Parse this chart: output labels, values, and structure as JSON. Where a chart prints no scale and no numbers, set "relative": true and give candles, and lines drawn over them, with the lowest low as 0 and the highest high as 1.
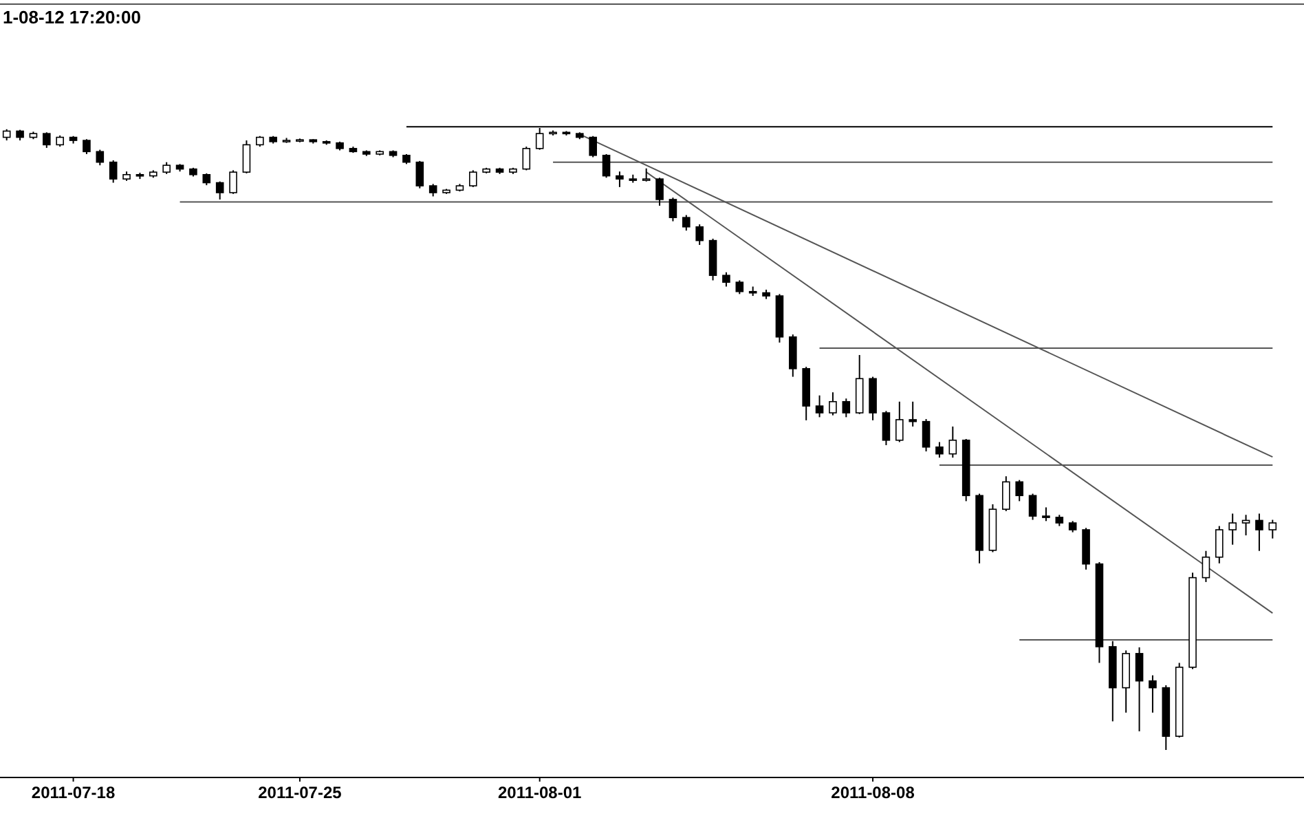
{
  "chart_data": {
    "type": "candlestick",
    "title": "1-08-12 17:20:00",
    "relative": true,
    "color": "#000000",
    "line_style": "solid",
    "categories": [
      null,
      null,
      null,
      null,
      null,
      "2011-07-18",
      null,
      null,
      null,
      null,
      null,
      null,
      null,
      null,
      null,
      null,
      null,
      null,
      null,
      null,
      null,
      null,
      "2011-07-25",
      null,
      null,
      null,
      null,
      null,
      null,
      null,
      null,
      null,
      null,
      null,
      null,
      null,
      null,
      null,
      null,
      null,
      "2011-08-01",
      null,
      null,
      null,
      null,
      null,
      null,
      null,
      null,
      null,
      null,
      null,
      null,
      null,
      null,
      null,
      null,
      null,
      null,
      null,
      null,
      null,
      null,
      null,
      null,
      "2011-08-08",
      null,
      null,
      null,
      null,
      null,
      null,
      null,
      null,
      null,
      null,
      null,
      null,
      null,
      null,
      null,
      null,
      null,
      null,
      null,
      null,
      null,
      null,
      null,
      null,
      null,
      null,
      null,
      null,
      null,
      null
    ],
    "ohlc": [
      [
        0.985,
        0.998,
        0.98,
        0.995
      ],
      [
        0.995,
        0.997,
        0.98,
        0.985
      ],
      [
        0.985,
        0.994,
        0.982,
        0.991
      ],
      [
        0.991,
        0.993,
        0.968,
        0.973
      ],
      [
        0.973,
        0.988,
        0.97,
        0.985
      ],
      [
        0.985,
        0.987,
        0.975,
        0.98
      ],
      [
        0.98,
        0.982,
        0.958,
        0.962
      ],
      [
        0.962,
        0.965,
        0.94,
        0.945
      ],
      [
        0.945,
        0.948,
        0.912,
        0.918
      ],
      [
        0.918,
        0.93,
        0.915,
        0.925
      ],
      [
        0.925,
        0.928,
        0.918,
        0.923
      ],
      [
        0.923,
        0.932,
        0.92,
        0.929
      ],
      [
        0.929,
        0.945,
        0.926,
        0.94
      ],
      [
        0.94,
        0.942,
        0.93,
        0.934
      ],
      [
        0.934,
        0.936,
        0.922,
        0.925
      ],
      [
        0.925,
        0.927,
        0.908,
        0.912
      ],
      [
        0.912,
        0.914,
        0.885,
        0.896
      ],
      [
        0.896,
        0.932,
        0.894,
        0.929
      ],
      [
        0.929,
        0.98,
        0.927,
        0.973
      ],
      [
        0.973,
        0.987,
        0.97,
        0.985
      ],
      [
        0.985,
        0.987,
        0.975,
        0.978
      ],
      [
        0.978,
        0.984,
        0.976,
        0.98
      ],
      [
        0.98,
        0.983,
        0.977,
        0.981
      ],
      [
        0.981,
        0.982,
        0.975,
        0.978
      ],
      [
        0.978,
        0.98,
        0.973,
        0.976
      ],
      [
        0.976,
        0.978,
        0.964,
        0.967
      ],
      [
        0.967,
        0.97,
        0.96,
        0.962
      ],
      [
        0.962,
        0.964,
        0.955,
        0.958
      ],
      [
        0.958,
        0.964,
        0.956,
        0.962
      ],
      [
        0.962,
        0.964,
        0.953,
        0.956
      ],
      [
        0.956,
        0.958,
        0.942,
        0.945
      ],
      [
        0.945,
        0.947,
        0.903,
        0.907
      ],
      [
        0.907,
        0.91,
        0.89,
        0.896
      ],
      [
        0.896,
        0.902,
        0.894,
        0.9
      ],
      [
        0.9,
        0.91,
        0.898,
        0.907
      ],
      [
        0.907,
        0.932,
        0.905,
        0.929
      ],
      [
        0.929,
        0.936,
        0.927,
        0.934
      ],
      [
        0.934,
        0.936,
        0.926,
        0.929
      ],
      [
        0.929,
        0.936,
        0.926,
        0.934
      ],
      [
        0.934,
        0.97,
        0.932,
        0.967
      ],
      [
        0.967,
        1,
        0.965,
        0.991
      ],
      [
        0.991,
        0.996,
        0.988,
        0.993
      ],
      [
        0.993,
        0.995,
        0.988,
        0.991
      ],
      [
        0.991,
        0.993,
        0.982,
        0.985
      ],
      [
        0.985,
        0.987,
        0.953,
        0.956
      ],
      [
        0.956,
        0.958,
        0.92,
        0.923
      ],
      [
        0.923,
        0.93,
        0.905,
        0.918
      ],
      [
        0.918,
        0.925,
        0.912,
        0.916
      ],
      [
        0.916,
        0.935,
        0.914,
        0.918
      ],
      [
        0.918,
        0.92,
        0.875,
        0.885
      ],
      [
        0.885,
        0.888,
        0.85,
        0.856
      ],
      [
        0.856,
        0.86,
        0.835,
        0.841
      ],
      [
        0.841,
        0.845,
        0.812,
        0.819
      ],
      [
        0.819,
        0.822,
        0.755,
        0.763
      ],
      [
        0.763,
        0.768,
        0.745,
        0.752
      ],
      [
        0.752,
        0.755,
        0.733,
        0.737
      ],
      [
        0.737,
        0.745,
        0.73,
        0.735
      ],
      [
        0.735,
        0.74,
        0.725,
        0.73
      ],
      [
        0.73,
        0.733,
        0.655,
        0.664
      ],
      [
        0.664,
        0.668,
        0.6,
        0.613
      ],
      [
        0.613,
        0.616,
        0.53,
        0.553
      ],
      [
        0.553,
        0.57,
        0.535,
        0.542
      ],
      [
        0.542,
        0.575,
        0.538,
        0.56
      ],
      [
        0.56,
        0.565,
        0.535,
        0.542
      ],
      [
        0.542,
        0.635,
        0.54,
        0.597
      ],
      [
        0.597,
        0.6,
        0.53,
        0.542
      ],
      [
        0.542,
        0.545,
        0.49,
        0.498
      ],
      [
        0.498,
        0.56,
        0.495,
        0.531
      ],
      [
        0.531,
        0.56,
        0.52,
        0.528
      ],
      [
        0.528,
        0.532,
        0.48,
        0.487
      ],
      [
        0.487,
        0.495,
        0.47,
        0.476
      ],
      [
        0.476,
        0.52,
        0.47,
        0.498
      ],
      [
        0.498,
        0.5,
        0.4,
        0.409
      ],
      [
        0.409,
        0.412,
        0.3,
        0.321
      ],
      [
        0.321,
        0.395,
        0.318,
        0.387
      ],
      [
        0.387,
        0.44,
        0.384,
        0.431
      ],
      [
        0.431,
        0.434,
        0.4,
        0.409
      ],
      [
        0.409,
        0.412,
        0.37,
        0.376
      ],
      [
        0.376,
        0.39,
        0.368,
        0.374
      ],
      [
        0.374,
        0.378,
        0.36,
        0.365
      ],
      [
        0.365,
        0.368,
        0.35,
        0.354
      ],
      [
        0.354,
        0.357,
        0.29,
        0.299
      ],
      [
        0.299,
        0.302,
        0.14,
        0.166
      ],
      [
        0.166,
        0.175,
        0.046,
        0.1
      ],
      [
        0.1,
        0.16,
        0.06,
        0.155
      ],
      [
        0.155,
        0.165,
        0.03,
        0.111
      ],
      [
        0.111,
        0.12,
        0.06,
        0.1
      ],
      [
        0.1,
        0.104,
        0,
        0.022
      ],
      [
        0.022,
        0.14,
        0.02,
        0.133
      ],
      [
        0.133,
        0.285,
        0.13,
        0.277
      ],
      [
        0.277,
        0.32,
        0.27,
        0.31
      ],
      [
        0.31,
        0.36,
        0.3,
        0.354
      ],
      [
        0.354,
        0.38,
        0.33,
        0.365
      ],
      [
        0.365,
        0.378,
        0.345,
        0.369
      ],
      [
        0.369,
        0.38,
        0.32,
        0.354
      ],
      [
        0.354,
        0.37,
        0.34,
        0.365
      ]
    ],
    "series": [
      {
        "type": "line",
        "color": "#000000",
        "values": [
          null,
          null,
          null,
          null,
          null,
          null,
          null,
          null,
          null,
          null,
          null,
          null,
          null,
          null,
          null,
          null,
          null,
          null,
          null,
          null,
          null,
          null,
          null,
          null,
          null,
          null,
          null,
          null,
          null,
          null,
          1.002,
          null,
          null,
          null,
          null,
          null,
          null,
          null,
          null,
          null,
          null,
          null,
          null,
          null,
          null,
          null,
          null,
          null,
          null,
          null,
          null,
          null,
          null,
          null,
          null,
          null,
          null,
          null,
          null,
          null,
          null,
          null,
          null,
          null,
          null,
          null,
          null,
          null,
          null,
          null,
          null,
          null,
          null,
          null,
          null,
          null,
          null,
          null,
          null,
          null,
          null,
          null,
          null,
          null,
          null,
          null,
          null,
          null,
          null,
          null,
          null,
          null,
          null,
          null,
          null,
          1.002
        ]
      },
      {
        "type": "line",
        "color": "#555555",
        "values": [
          null,
          null,
          null,
          null,
          null,
          null,
          null,
          null,
          null,
          null,
          null,
          null,
          null,
          null,
          null,
          null,
          null,
          null,
          null,
          null,
          null,
          null,
          null,
          null,
          null,
          null,
          null,
          null,
          null,
          null,
          null,
          null,
          null,
          null,
          null,
          null,
          null,
          null,
          null,
          null,
          null,
          0.945,
          null,
          null,
          null,
          null,
          null,
          null,
          null,
          null,
          null,
          null,
          null,
          null,
          null,
          null,
          null,
          null,
          null,
          null,
          null,
          null,
          null,
          null,
          null,
          null,
          null,
          null,
          null,
          null,
          null,
          null,
          null,
          null,
          null,
          null,
          null,
          null,
          null,
          null,
          null,
          null,
          null,
          null,
          null,
          null,
          null,
          null,
          null,
          null,
          null,
          null,
          null,
          null,
          null,
          0.945
        ]
      },
      {
        "type": "line",
        "color": "#555555",
        "values": [
          null,
          null,
          null,
          null,
          null,
          null,
          null,
          null,
          null,
          null,
          null,
          null,
          null,
          0.881,
          null,
          null,
          null,
          null,
          null,
          null,
          null,
          null,
          null,
          null,
          null,
          null,
          null,
          null,
          null,
          null,
          null,
          null,
          null,
          null,
          null,
          null,
          null,
          null,
          null,
          null,
          null,
          null,
          null,
          null,
          null,
          null,
          null,
          null,
          null,
          null,
          null,
          null,
          null,
          null,
          null,
          null,
          null,
          null,
          null,
          null,
          null,
          null,
          null,
          null,
          null,
          null,
          null,
          null,
          null,
          null,
          null,
          null,
          null,
          null,
          null,
          null,
          null,
          null,
          null,
          null,
          null,
          null,
          null,
          null,
          null,
          null,
          null,
          null,
          null,
          null,
          null,
          null,
          null,
          null,
          null,
          0.881
        ]
      },
      {
        "type": "line",
        "color": "#555555",
        "values": [
          null,
          null,
          null,
          null,
          null,
          null,
          null,
          null,
          null,
          null,
          null,
          null,
          null,
          null,
          null,
          null,
          null,
          null,
          null,
          null,
          null,
          null,
          null,
          null,
          null,
          null,
          null,
          null,
          null,
          null,
          null,
          null,
          null,
          null,
          null,
          null,
          null,
          null,
          null,
          null,
          null,
          null,
          null,
          null,
          null,
          null,
          null,
          null,
          null,
          null,
          null,
          null,
          null,
          null,
          null,
          null,
          null,
          null,
          null,
          null,
          null,
          0.646,
          null,
          null,
          null,
          null,
          null,
          null,
          null,
          null,
          null,
          null,
          null,
          null,
          null,
          null,
          null,
          null,
          null,
          null,
          null,
          null,
          null,
          null,
          null,
          null,
          null,
          null,
          null,
          null,
          null,
          null,
          null,
          null,
          null,
          0.646
        ]
      },
      {
        "type": "line",
        "color": "#555555",
        "values": [
          null,
          null,
          null,
          null,
          null,
          null,
          null,
          null,
          null,
          null,
          null,
          null,
          null,
          null,
          null,
          null,
          null,
          null,
          null,
          null,
          null,
          null,
          null,
          null,
          null,
          null,
          null,
          null,
          null,
          null,
          null,
          null,
          null,
          null,
          null,
          null,
          null,
          null,
          null,
          null,
          null,
          null,
          null,
          null,
          null,
          null,
          null,
          null,
          null,
          null,
          null,
          null,
          null,
          null,
          null,
          null,
          null,
          null,
          null,
          null,
          null,
          null,
          null,
          null,
          null,
          null,
          null,
          null,
          null,
          null,
          0.458,
          null,
          null,
          null,
          null,
          null,
          null,
          null,
          null,
          null,
          null,
          null,
          null,
          null,
          null,
          null,
          null,
          null,
          null,
          null,
          null,
          null,
          null,
          null,
          null,
          0.458
        ]
      },
      {
        "type": "line",
        "color": "#555555",
        "values": [
          null,
          null,
          null,
          null,
          null,
          null,
          null,
          null,
          null,
          null,
          null,
          null,
          null,
          null,
          null,
          null,
          null,
          null,
          null,
          null,
          null,
          null,
          null,
          null,
          null,
          null,
          null,
          null,
          null,
          null,
          null,
          null,
          null,
          null,
          null,
          null,
          null,
          null,
          null,
          null,
          null,
          null,
          null,
          null,
          null,
          null,
          null,
          null,
          null,
          null,
          null,
          null,
          null,
          null,
          null,
          null,
          null,
          null,
          null,
          null,
          null,
          null,
          null,
          null,
          null,
          null,
          null,
          null,
          null,
          null,
          null,
          null,
          null,
          null,
          null,
          null,
          0.177,
          null,
          null,
          null,
          null,
          null,
          null,
          null,
          null,
          null,
          null,
          null,
          null,
          null,
          null,
          null,
          null,
          null,
          null,
          0.177
        ]
      },
      {
        "type": "line",
        "color": "#555555",
        "values": [
          null,
          null,
          null,
          null,
          null,
          null,
          null,
          null,
          null,
          null,
          null,
          null,
          null,
          null,
          null,
          null,
          null,
          null,
          null,
          null,
          null,
          null,
          null,
          null,
          null,
          null,
          null,
          null,
          null,
          null,
          null,
          null,
          null,
          null,
          null,
          null,
          null,
          null,
          null,
          null,
          null,
          null,
          null,
          0.99,
          null,
          null,
          null,
          null,
          null,
          null,
          null,
          null,
          null,
          null,
          null,
          null,
          null,
          null,
          null,
          null,
          null,
          null,
          null,
          null,
          null,
          null,
          null,
          null,
          null,
          null,
          null,
          null,
          null,
          null,
          null,
          null,
          null,
          null,
          null,
          null,
          null,
          null,
          null,
          null,
          null,
          null,
          null,
          null,
          null,
          null,
          null,
          null,
          null,
          null,
          null,
          0.471
        ]
      },
      {
        "type": "line",
        "color": "#555555",
        "values": [
          null,
          null,
          null,
          null,
          null,
          null,
          null,
          null,
          null,
          null,
          null,
          null,
          null,
          null,
          null,
          null,
          null,
          null,
          null,
          null,
          null,
          null,
          null,
          null,
          null,
          null,
          null,
          null,
          null,
          null,
          null,
          null,
          null,
          null,
          null,
          null,
          null,
          null,
          null,
          null,
          null,
          null,
          null,
          null,
          null,
          null,
          null,
          null,
          0.929,
          null,
          null,
          null,
          null,
          null,
          null,
          null,
          null,
          null,
          null,
          null,
          null,
          null,
          null,
          null,
          null,
          null,
          null,
          null,
          null,
          null,
          null,
          null,
          null,
          null,
          null,
          null,
          null,
          null,
          null,
          null,
          null,
          null,
          null,
          null,
          null,
          null,
          null,
          null,
          null,
          null,
          null,
          null,
          null,
          null,
          null,
          0.22
        ]
      }
    ]
  }
}
